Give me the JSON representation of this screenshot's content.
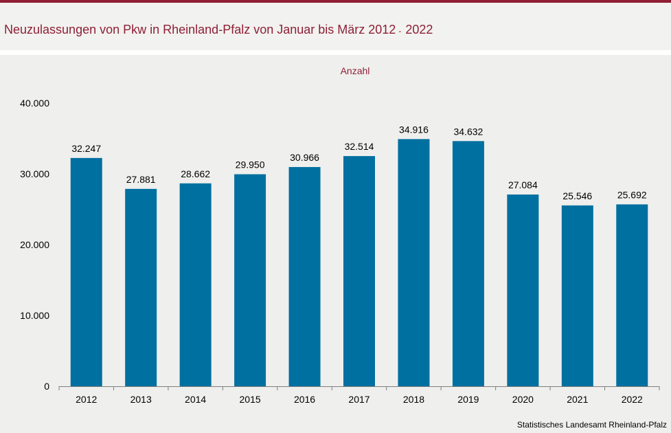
{
  "chart_data": {
    "type": "bar",
    "title": "Neuzulassungen von Pkw in Rheinland-Pfalz von Januar bis März 2012 - 2022",
    "ylabel": "Anzahl",
    "xlabel": "",
    "categories": [
      "2012",
      "2013",
      "2014",
      "2015",
      "2016",
      "2017",
      "2018",
      "2019",
      "2020",
      "2021",
      "2022"
    ],
    "values": [
      32247,
      27881,
      28662,
      29950,
      30966,
      32514,
      34916,
      34632,
      27084,
      25546,
      25692
    ],
    "value_labels": [
      "32.247",
      "27.881",
      "28.662",
      "29.950",
      "30.966",
      "32.514",
      "34.916",
      "34.632",
      "27.084",
      "25.546",
      "25.692"
    ],
    "ylim": [
      0,
      40000
    ],
    "yticks": [
      0,
      10000,
      20000,
      30000,
      40000
    ],
    "ytick_labels": [
      "0",
      "10.000",
      "20.000",
      "30.000",
      "40.000"
    ],
    "grid": false,
    "bar_color": "#0070a0",
    "title_color": "#8e1f35"
  },
  "header": {
    "title_text": "Neuzulassungen von Pkw in Rheinland-Pfalz von Januar bis März 2012",
    "title_dash": "-",
    "title_end": "2022"
  },
  "footer": {
    "source": "Statistisches Landesamt  Rheinland-Pfalz"
  }
}
